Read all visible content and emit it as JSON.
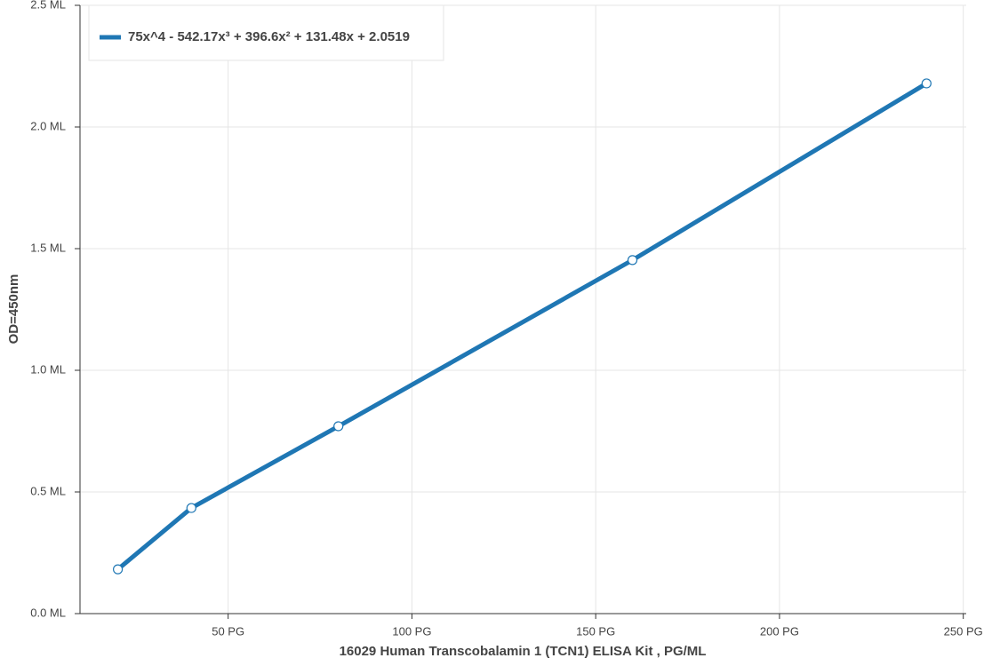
{
  "chart_data": {
    "type": "line",
    "x_label": "16029 Human Transcobalamin 1 (TCN1) ELISA Kit , PG/ML",
    "y_label": "OD=450nm",
    "x": [
      20,
      40,
      80,
      160,
      240
    ],
    "series": [
      {
        "name": "75x^4 - 542.17x³ + 396.6x² + 131.48x + 2.0519",
        "color": "#1f77b4",
        "values": [
          0.182,
          0.434,
          0.77,
          1.453,
          2.179
        ]
      }
    ],
    "xlim": [
      9.7,
      250.8
    ],
    "ylim": [
      0,
      2.5
    ],
    "xticks": [
      {
        "value": 50,
        "label": "50 PG"
      },
      {
        "value": 100,
        "label": "100 PG"
      },
      {
        "value": 150,
        "label": "150 PG"
      },
      {
        "value": 200,
        "label": "200 PG"
      },
      {
        "value": 250,
        "label": "250 PG"
      }
    ],
    "yticks": [
      {
        "value": 0,
        "label": "0.0 ML"
      },
      {
        "value": 0.5,
        "label": "0.5 ML"
      },
      {
        "value": 1,
        "label": "1.0 ML"
      },
      {
        "value": 1.5,
        "label": "1.5 ML"
      },
      {
        "value": 2,
        "label": "2.0 ML"
      },
      {
        "value": 2.5,
        "label": "2.5 ML"
      }
    ],
    "grid": true,
    "legend": "top-left"
  }
}
